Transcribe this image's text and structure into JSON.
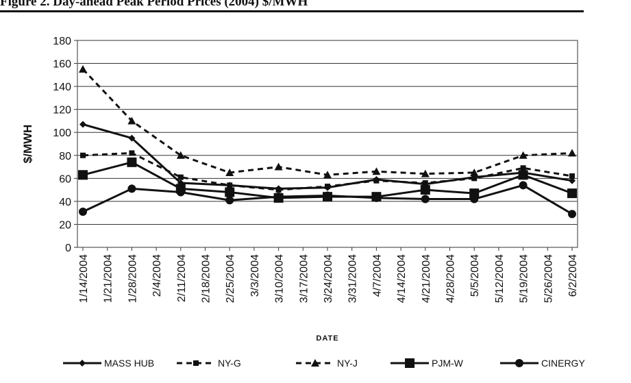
{
  "figure_title": "Figure 2. Day-ahead Peak Period Prices (2004) $/MWH",
  "chart_data": {
    "type": "line",
    "title": "Figure 2. Day-ahead Peak Period Prices (2004) $/MWH",
    "xlabel": "DATE",
    "ylabel": "$/MWH",
    "ylim": [
      0,
      180
    ],
    "yticks": [
      0,
      20,
      40,
      60,
      80,
      100,
      120,
      140,
      160,
      180
    ],
    "grid": true,
    "legend_position": "bottom",
    "categories": [
      "1/14/2004",
      "1/21/2004",
      "1/28/2004",
      "2/4/2004",
      "2/11/2004",
      "2/18/2004",
      "2/25/2004",
      "3/3/2004",
      "3/10/2004",
      "3/17/2004",
      "3/24/2004",
      "3/31/2004",
      "4/7/2004",
      "4/14/2004",
      "4/21/2004",
      "4/28/2004",
      "5/5/2004",
      "5/12/2004",
      "5/19/2004",
      "5/26/2004",
      "6/2/2004"
    ],
    "series": [
      {
        "name": "MASS HUB",
        "style": "solid",
        "marker": "diamond",
        "points": [
          [
            0,
            107
          ],
          [
            2,
            95
          ],
          [
            4,
            56
          ],
          [
            6,
            54
          ],
          [
            8,
            51
          ],
          [
            10,
            52
          ],
          [
            12,
            59
          ],
          [
            14,
            55
          ],
          [
            16,
            61
          ],
          [
            18,
            65
          ],
          [
            20,
            58
          ]
        ]
      },
      {
        "name": "NY-G",
        "style": "dashed",
        "marker": "small-square",
        "points": [
          [
            0,
            80
          ],
          [
            2,
            82
          ],
          [
            4,
            61
          ],
          [
            6,
            54
          ],
          [
            8,
            50
          ],
          [
            10,
            53
          ],
          [
            12,
            58
          ],
          [
            14,
            56
          ],
          [
            16,
            60
          ],
          [
            18,
            69
          ],
          [
            20,
            62
          ]
        ]
      },
      {
        "name": "NY-J",
        "style": "dashed",
        "marker": "triangle",
        "points": [
          [
            0,
            155
          ],
          [
            2,
            110
          ],
          [
            4,
            80
          ],
          [
            6,
            65
          ],
          [
            8,
            70
          ],
          [
            10,
            63
          ],
          [
            12,
            66
          ],
          [
            14,
            64
          ],
          [
            16,
            65
          ],
          [
            18,
            80
          ],
          [
            20,
            82
          ]
        ]
      },
      {
        "name": "PJM-W",
        "style": "solid",
        "marker": "square",
        "points": [
          [
            0,
            63
          ],
          [
            2,
            74
          ],
          [
            4,
            51
          ],
          [
            6,
            48
          ],
          [
            8,
            43
          ],
          [
            10,
            44
          ],
          [
            12,
            44
          ],
          [
            14,
            50
          ],
          [
            16,
            47
          ],
          [
            18,
            63
          ],
          [
            20,
            47
          ]
        ]
      },
      {
        "name": "CINERGY",
        "style": "solid",
        "marker": "circle",
        "points": [
          [
            0,
            31
          ],
          [
            2,
            51
          ],
          [
            4,
            48
          ],
          [
            6,
            41
          ],
          [
            8,
            44
          ],
          [
            10,
            45
          ],
          [
            12,
            43
          ],
          [
            14,
            42
          ],
          [
            16,
            42
          ],
          [
            18,
            54
          ],
          [
            20,
            29
          ]
        ]
      }
    ]
  }
}
